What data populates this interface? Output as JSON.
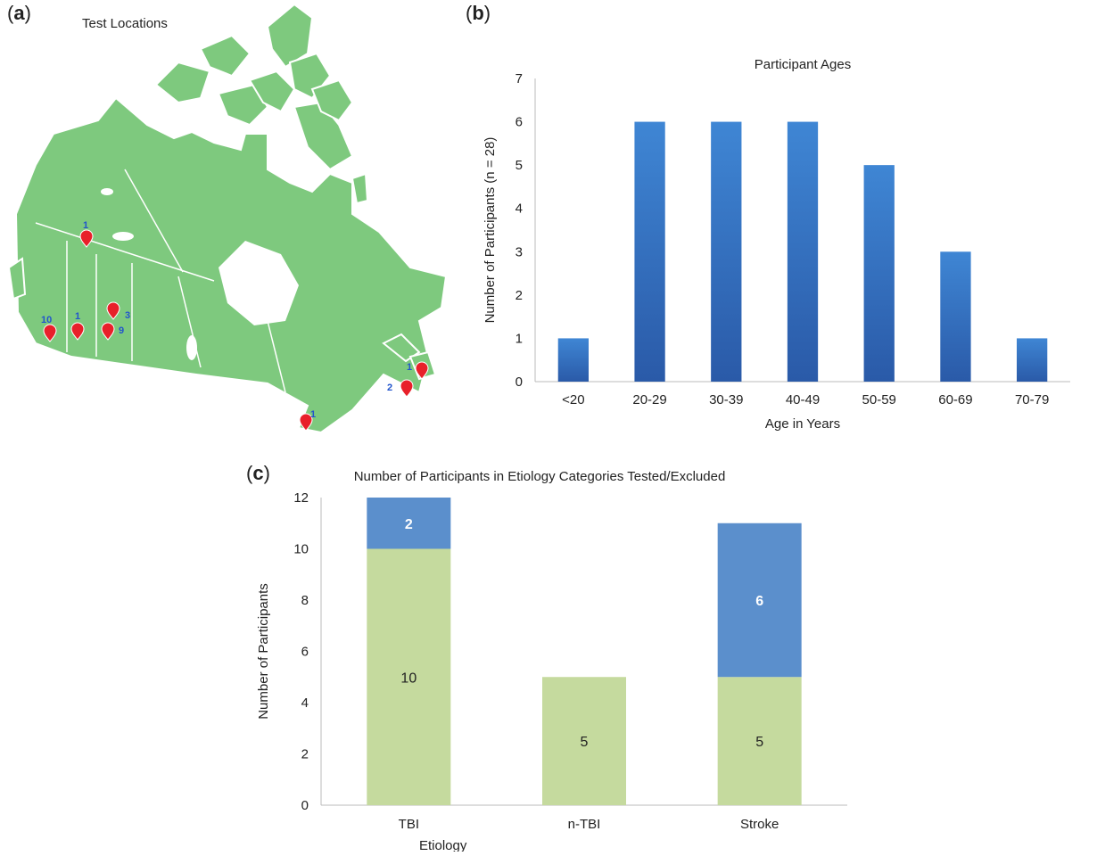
{
  "panels": {
    "a": {
      "label": "a"
    },
    "b": {
      "label": "b"
    },
    "c": {
      "label": "c"
    }
  },
  "map": {
    "title": "Test Locations",
    "markers": [
      {
        "count": "1"
      },
      {
        "count": "10"
      },
      {
        "count": "1"
      },
      {
        "count": "3"
      },
      {
        "count": "9"
      },
      {
        "count": "1"
      },
      {
        "count": "2"
      },
      {
        "count": "1"
      }
    ],
    "colors": {
      "land": "#7ec97e",
      "water": "#ffffff",
      "marker": "#e8202a",
      "count": "#2255cc"
    }
  },
  "chart_data": [
    {
      "type": "bar",
      "title": "Participant Ages",
      "xlabel": "Age in Years",
      "ylabel": "Number of Participants (n = 28)",
      "categories": [
        "<20",
        "20-29",
        "30-39",
        "40-49",
        "50-59",
        "60-69",
        "70-79"
      ],
      "values": [
        1,
        6,
        6,
        6,
        5,
        3,
        1
      ],
      "ylim": [
        0,
        7
      ],
      "yticks": [
        "0",
        "1",
        "2",
        "3",
        "4",
        "5",
        "6",
        "7"
      ],
      "color": "#2e6bbf"
    },
    {
      "type": "bar",
      "stacked": true,
      "title": "Number of Participants in Etiology Categories Tested/Excluded",
      "xlabel": "Etiology",
      "ylabel": "Number of Participants",
      "categories": [
        "TBI",
        "n-TBI",
        "Stroke"
      ],
      "series": [
        {
          "values": [
            10,
            5,
            5
          ],
          "labels": [
            "10",
            "5",
            "5"
          ],
          "color": "#c5da9e"
        },
        {
          "values": [
            2,
            0,
            6
          ],
          "labels": [
            "2",
            "",
            "6"
          ],
          "color": "#5b8fcc"
        }
      ],
      "ylim": [
        0,
        12
      ],
      "yticks": [
        "0",
        "2",
        "4",
        "6",
        "8",
        "10",
        "12"
      ]
    }
  ]
}
